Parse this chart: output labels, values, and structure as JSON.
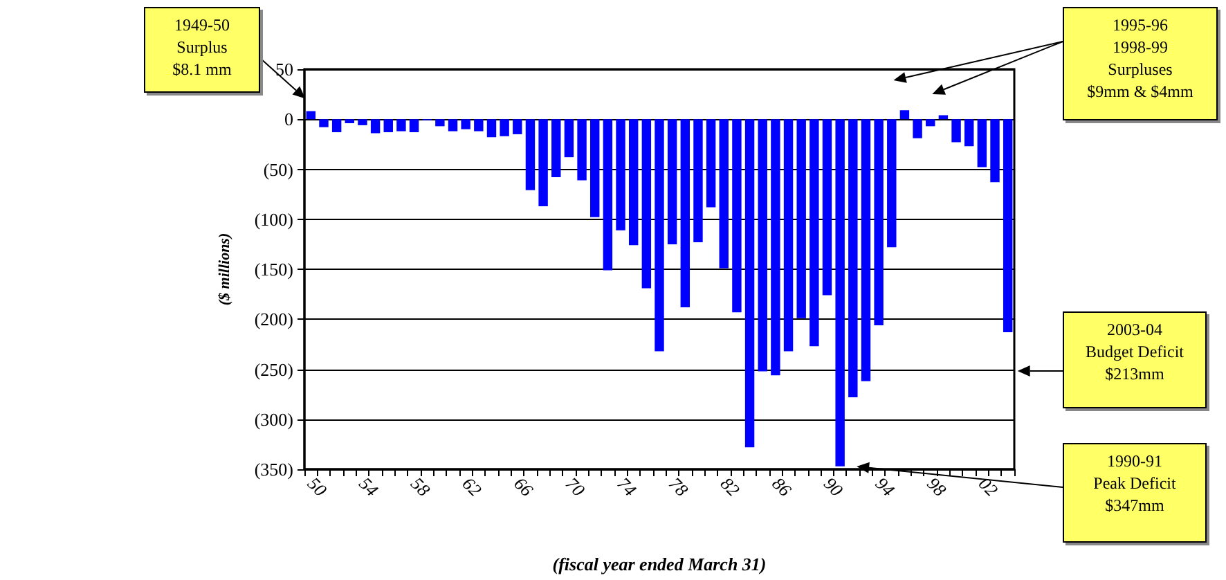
{
  "chart_data": {
    "type": "bar",
    "ylabel": "($ millions)",
    "xlabel": "(fiscal year ended March 31)",
    "categories": [
      "50",
      null,
      null,
      null,
      "54",
      null,
      null,
      null,
      "58",
      null,
      null,
      null,
      "62",
      null,
      null,
      null,
      "66",
      null,
      null,
      null,
      "70",
      null,
      null,
      null,
      "74",
      null,
      null,
      null,
      "78",
      null,
      null,
      null,
      "82",
      null,
      null,
      null,
      "86",
      null,
      null,
      null,
      "90",
      null,
      null,
      null,
      "94",
      null,
      null,
      null,
      "98",
      null,
      null,
      null,
      "02",
      null,
      null
    ],
    "values": [
      8.1,
      -8,
      -13,
      -4,
      -6,
      -14,
      -13,
      -12,
      -13,
      -1,
      -7,
      -12,
      -10,
      -12,
      -18,
      -17,
      -15,
      -71,
      -87,
      -58,
      -38,
      -61,
      -98,
      -151,
      -111,
      -126,
      -169,
      -232,
      -125,
      -188,
      -123,
      -88,
      -149,
      -193,
      -328,
      -252,
      -256,
      -232,
      -199,
      -227,
      -176,
      -347,
      -278,
      -262,
      -206,
      -128,
      9,
      -19,
      -7,
      4,
      -23,
      -27,
      -48,
      -63,
      -213
    ],
    "color": "#0000ff",
    "ylim": [
      -350,
      50
    ],
    "yticks": [
      50,
      0,
      {
        "value": -50,
        "label": "(50)"
      },
      {
        "value": -100,
        "label": "(100)"
      },
      {
        "value": -150,
        "label": "(150)"
      },
      {
        "value": -200,
        "label": "(200)"
      },
      {
        "value": -250,
        "label": "(250)"
      },
      {
        "value": -300,
        "label": "(300)"
      },
      {
        "value": -350,
        "label": "(350)"
      }
    ],
    "grid": "y",
    "annotations": [
      "1949-50\nSurplus\n$8.1 mm",
      "1995-96\n1998-99\nSurpluses\n$9mm & $4mm",
      "2003-04\nBudget Deficit\n$213mm",
      "1990-91\nPeak Deficit\n$347mm"
    ]
  }
}
